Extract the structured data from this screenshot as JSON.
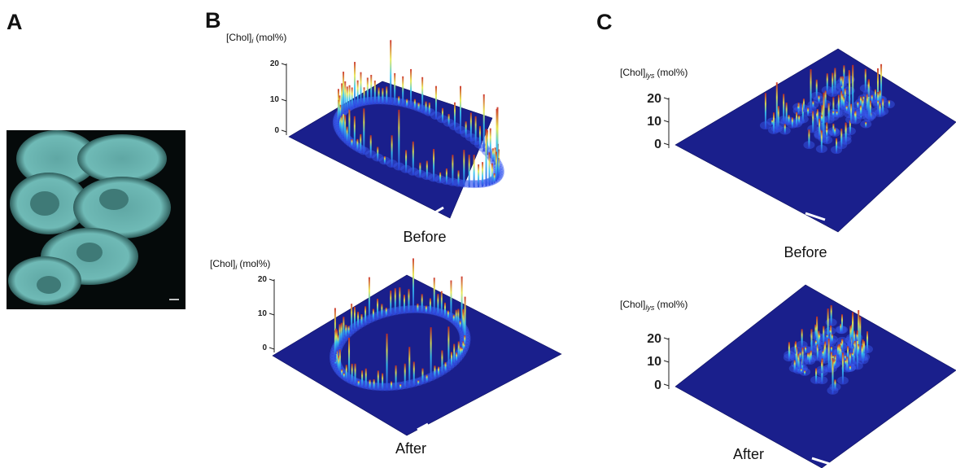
{
  "panels": [
    {
      "label": "A"
    },
    {
      "label": "B",
      "plots": [
        {
          "axis_label": {
            "main": "[Chol]",
            "sub": "i",
            "unit": "(mol%)"
          },
          "ticks": [
            20,
            10,
            0
          ],
          "caption": "Before"
        },
        {
          "axis_label": {
            "main": "[Chol]",
            "sub": "i",
            "unit": "(mol%)"
          },
          "ticks": [
            20,
            10,
            0
          ],
          "caption": "After"
        }
      ]
    },
    {
      "label": "C",
      "plots": [
        {
          "axis_label": {
            "main": "[Chol]",
            "sub": "lys",
            "unit": "(mol%)"
          },
          "ticks": [
            20,
            10,
            0
          ],
          "caption": "Before"
        },
        {
          "axis_label": {
            "main": "[Chol]",
            "sub": "lys",
            "unit": "(mol%)"
          },
          "ticks": [
            20,
            10,
            0
          ],
          "caption": "After"
        }
      ]
    }
  ]
}
